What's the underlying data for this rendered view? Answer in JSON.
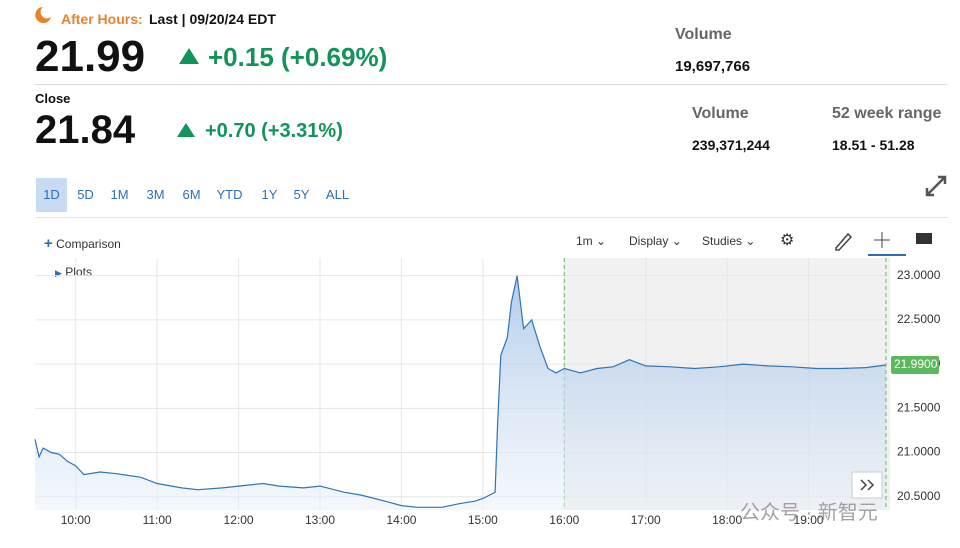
{
  "header": {
    "after_hours_label": "After Hours:",
    "last_label": "Last | 09/20/24 EDT",
    "after_price": "21.99",
    "after_change": "+0.15 (+0.69%)",
    "after_volume_label": "Volume",
    "after_volume": "19,697,766",
    "close_label": "Close",
    "close_price": "21.84",
    "close_change": "+0.70 (+3.31%)",
    "volume_label": "Volume",
    "volume": "239,371,244",
    "range_label": "52 week range",
    "range": "18.51 - 51.28"
  },
  "ranges": [
    "1D",
    "5D",
    "1M",
    "3M",
    "6M",
    "YTD",
    "1Y",
    "5Y",
    "ALL"
  ],
  "toolbar": {
    "comparison": "Comparison",
    "interval": "1m",
    "display": "Display",
    "studies": "Studies",
    "plots": "Plots"
  },
  "watermark": "公众号 · 新智元",
  "chart_data": {
    "type": "line",
    "x": [
      9.5,
      9.55,
      9.6,
      9.7,
      9.8,
      9.9,
      10.0,
      10.1,
      10.3,
      10.5,
      10.8,
      11.0,
      11.3,
      11.5,
      11.8,
      12.0,
      12.3,
      12.5,
      12.8,
      13.0,
      13.3,
      13.5,
      13.8,
      14.0,
      14.2,
      14.5,
      14.7,
      14.9,
      15.0,
      15.15,
      15.18,
      15.22,
      15.3,
      15.35,
      15.42,
      15.5,
      15.6,
      15.7,
      15.8,
      15.9,
      16.0,
      16.2,
      16.4,
      16.6,
      16.8,
      17.0,
      17.3,
      17.6,
      17.9,
      18.2,
      18.5,
      18.8,
      19.1,
      19.4,
      19.7,
      19.95
    ],
    "series": [
      {
        "color": "#2f74b5",
        "values": [
          21.15,
          20.95,
          21.05,
          21.0,
          20.98,
          20.9,
          20.85,
          20.75,
          20.78,
          20.76,
          20.72,
          20.65,
          20.6,
          20.58,
          20.6,
          20.62,
          20.65,
          20.62,
          20.6,
          20.62,
          20.55,
          20.52,
          20.45,
          20.4,
          20.38,
          20.38,
          20.42,
          20.45,
          20.48,
          20.55,
          21.3,
          22.1,
          22.3,
          22.7,
          23.0,
          22.4,
          22.5,
          22.2,
          21.95,
          21.9,
          21.95,
          21.9,
          21.95,
          21.97,
          22.05,
          21.98,
          21.97,
          21.95,
          21.97,
          22.0,
          21.98,
          21.97,
          21.95,
          21.95,
          21.96,
          21.99
        ],
        "value_labels": [
          null,
          null,
          null,
          null,
          null,
          null,
          null,
          null,
          null,
          null,
          null,
          null,
          null,
          null,
          null,
          null,
          null,
          null,
          null,
          null,
          null,
          null,
          null,
          null,
          null,
          null,
          null,
          null,
          null,
          null,
          null,
          null,
          null,
          null,
          null,
          null,
          null,
          null,
          null,
          null,
          null,
          null,
          null,
          null,
          null,
          null,
          null,
          null,
          null,
          null,
          null,
          null,
          null,
          null,
          null,
          "21.9900"
        ]
      }
    ],
    "xlim": [
      9.5,
      20.0
    ],
    "xticks": [
      {
        "value": 10,
        "label": "10:00"
      },
      {
        "value": 11,
        "label": "11:00"
      },
      {
        "value": 12,
        "label": "12:00"
      },
      {
        "value": 13,
        "label": "13:00"
      },
      {
        "value": 14,
        "label": "14:00"
      },
      {
        "value": 15,
        "label": "15:00"
      },
      {
        "value": 16,
        "label": "16:00"
      },
      {
        "value": 17,
        "label": "17:00"
      },
      {
        "value": 18,
        "label": "18:00"
      },
      {
        "value": 19,
        "label": "19:00"
      }
    ],
    "ylim": [
      20.35,
      23.2
    ],
    "yticks": [
      {
        "value": 20.5,
        "label": "20.5000"
      },
      {
        "value": 21,
        "label": "21.0000"
      },
      {
        "value": 21.5,
        "label": "21.5000"
      },
      {
        "value": 22,
        "label": "22.0000"
      },
      {
        "value": 22.5,
        "label": "22.5000"
      },
      {
        "value": 23,
        "label": "23.0000"
      }
    ],
    "grid": true
  }
}
